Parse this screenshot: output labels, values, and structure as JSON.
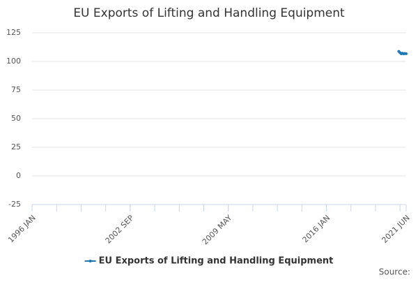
{
  "chart_data": {
    "type": "line",
    "title": "EU Exports of Lifting and Handling Equipment",
    "x": [
      "2020 DEC",
      "2021 JAN",
      "2021 FEB",
      "2021 MAR",
      "2021 APR",
      "2021 MAY",
      "2021 JUN"
    ],
    "series": [
      {
        "name": "EU Exports of Lifting and Handling Equipment",
        "color": "#1f77b4",
        "values": [
          108.8,
          107.6,
          106.7,
          107.2,
          106.6,
          106.9,
          106.8
        ]
      }
    ],
    "xlim": [
      "1996 JAN",
      "2021 JUN"
    ],
    "xticks": [
      "1996 JAN",
      "2002 SEP",
      "2009 MAY",
      "2016 JAN",
      "2021 JUN"
    ],
    "ylim": [
      -25,
      125
    ],
    "yticks": [
      -25,
      0,
      25,
      50,
      75,
      100,
      125
    ],
    "grid": true,
    "legend": "bottom",
    "source": "Source:"
  }
}
